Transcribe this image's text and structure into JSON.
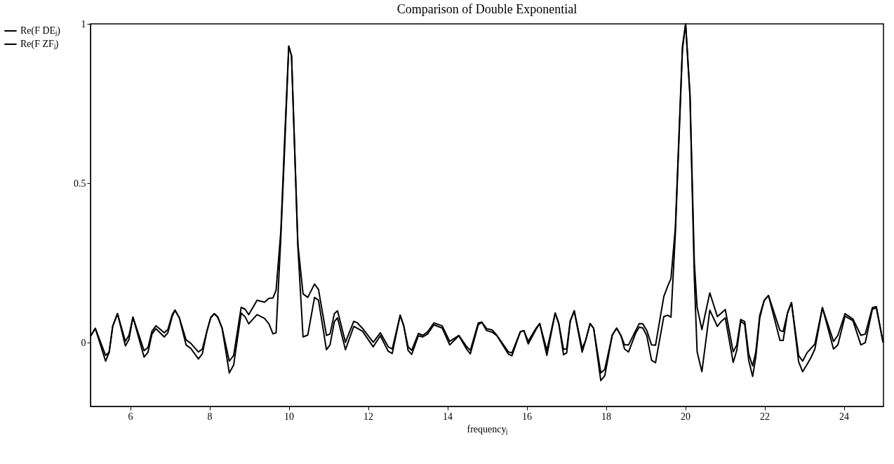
{
  "chart_data": {
    "type": "line",
    "title": "Comparison of Double Exponential",
    "xlabel": "frequencyⱼ",
    "x": [
      5,
      5.12,
      5.38,
      5.47,
      5.56,
      5.68,
      5.88,
      5.97,
      6.07,
      6.35,
      6.45,
      6.55,
      6.65,
      6.86,
      6.95,
      7.06,
      7.13,
      7.24,
      7.41,
      7.53,
      7.72,
      7.82,
      7.94,
      8.03,
      8.12,
      8.21,
      8.32,
      8.5,
      8.61,
      8.8,
      8.9,
      8.99,
      9.2,
      9.39,
      9.5,
      9.6,
      9.68,
      9.8,
      9.9,
      10,
      10.07,
      10.23,
      10.36,
      10.48,
      10.65,
      10.75,
      10.95,
      11.04,
      11.15,
      11.23,
      11.43,
      11.64,
      11.72,
      11.86,
      12.13,
      12.31,
      12.51,
      12.61,
      12.81,
      12.9,
      13.01,
      13.1,
      13.27,
      13.38,
      13.5,
      13.66,
      13.87,
      14.06,
      14.29,
      14.49,
      14.58,
      14.78,
      14.87,
      14.99,
      15.13,
      15.25,
      15.54,
      15.63,
      15.84,
      15.93,
      16.04,
      16.24,
      16.33,
      16.51,
      16.72,
      16.81,
      16.93,
      17.01,
      17.1,
      17.2,
      17.4,
      17.49,
      17.6,
      17.69,
      17.87,
      17.97,
      18.16,
      18.27,
      18.38,
      18.47,
      18.57,
      18.75,
      18.84,
      18.93,
      19.03,
      19.15,
      19.25,
      19.46,
      19.56,
      19.64,
      19.75,
      19.93,
      20.01,
      20.12,
      20.23,
      20.3,
      20.42,
      20.62,
      20.81,
      20.91,
      21.01,
      21.21,
      21.3,
      21.4,
      21.5,
      21.6,
      21.7,
      21.78,
      21.88,
      21.99,
      22.1,
      22.39,
      22.47,
      22.58,
      22.68,
      22.86,
      22.96,
      23.07,
      23.17,
      23.27,
      23.46,
      23.74,
      23.85,
      24.03,
      24.23,
      24.43,
      24.54,
      24.72,
      24.82,
      24.99
    ],
    "series": [
      {
        "name": "Re(F DEⱼ)",
        "color": "#000000",
        "values": [
          0.02,
          0.045,
          -0.04,
          -0.03,
          0.052,
          0.091,
          0.004,
          0.023,
          0.08,
          -0.025,
          -0.015,
          0.036,
          0.053,
          0.031,
          0.041,
          0.088,
          0.102,
          0.078,
          0.009,
          -0.002,
          -0.029,
          -0.02,
          0.038,
          0.078,
          0.091,
          0.08,
          0.045,
          -0.058,
          -0.04,
          0.111,
          0.105,
          0.088,
          0.133,
          0.127,
          0.139,
          0.14,
          0.164,
          0.35,
          0.65,
          0.93,
          0.9,
          0.31,
          0.153,
          0.142,
          0.184,
          0.167,
          0.023,
          0.027,
          0.091,
          0.1,
          0.001,
          0.067,
          0.063,
          0.045,
          0.001,
          0.031,
          -0.013,
          -0.02,
          0.086,
          0.053,
          -0.013,
          -0.024,
          0.029,
          0.023,
          0.034,
          0.062,
          0.053,
          0.004,
          0.023,
          -0.013,
          -0.024,
          0.062,
          0.064,
          0.044,
          0.04,
          0.023,
          -0.029,
          -0.032,
          0.034,
          0.038,
          0.004,
          0.046,
          0.06,
          -0.024,
          0.093,
          0.06,
          -0.021,
          -0.019,
          0.069,
          0.1,
          -0.018,
          0.008,
          0.06,
          0.045,
          -0.095,
          -0.084,
          0.024,
          0.046,
          0.022,
          -0.007,
          -0.007,
          0.038,
          0.06,
          0.059,
          0.038,
          -0.007,
          -0.008,
          0.145,
          0.178,
          0.201,
          0.36,
          0.93,
          1.0,
          0.78,
          0.25,
          0.111,
          0.041,
          0.156,
          0.082,
          0.093,
          0.104,
          -0.029,
          -0.007,
          0.073,
          0.066,
          -0.035,
          -0.073,
          -0.029,
          0.086,
          0.132,
          0.148,
          0.038,
          0.035,
          0.093,
          0.126,
          -0.04,
          -0.058,
          -0.032,
          -0.018,
          -0.004,
          0.11,
          0.004,
          0.023,
          0.091,
          0.074,
          0.023,
          0.027,
          0.11,
          0.113,
          0.001
        ]
      },
      {
        "name": "Re(F ZFⱼ)",
        "color": "#000000",
        "values": [
          0.02,
          0.045,
          -0.058,
          -0.03,
          0.052,
          0.091,
          -0.01,
          0.01,
          0.08,
          -0.045,
          -0.03,
          0.027,
          0.044,
          0.018,
          0.031,
          0.082,
          0.102,
          0.078,
          -0.007,
          -0.018,
          -0.051,
          -0.035,
          0.038,
          0.078,
          0.091,
          0.08,
          0.045,
          -0.095,
          -0.07,
          0.093,
          0.081,
          0.059,
          0.088,
          0.076,
          0.059,
          0.028,
          0.031,
          0.33,
          0.62,
          0.93,
          0.9,
          0.3,
          0.018,
          0.024,
          0.142,
          0.133,
          -0.022,
          -0.007,
          0.066,
          0.078,
          -0.022,
          0.051,
          0.046,
          0.036,
          -0.013,
          0.022,
          -0.027,
          -0.034,
          0.086,
          0.053,
          -0.024,
          -0.037,
          0.022,
          0.018,
          0.027,
          0.056,
          0.046,
          -0.007,
          0.022,
          -0.021,
          -0.035,
          0.056,
          0.064,
          0.038,
          0.033,
          0.022,
          -0.036,
          -0.041,
          0.034,
          0.038,
          -0.004,
          0.042,
          0.06,
          -0.04,
          0.093,
          0.06,
          -0.038,
          -0.032,
          0.067,
          0.1,
          -0.03,
          0.008,
          0.06,
          0.045,
          -0.119,
          -0.104,
          0.024,
          0.045,
          0.022,
          -0.02,
          -0.029,
          0.03,
          0.049,
          0.046,
          0.022,
          -0.055,
          -0.063,
          0.082,
          0.086,
          0.08,
          0.34,
          0.92,
          1.0,
          0.77,
          0.2,
          -0.029,
          -0.091,
          0.102,
          0.051,
          0.067,
          0.078,
          -0.062,
          -0.024,
          0.067,
          0.058,
          -0.055,
          -0.106,
          -0.045,
          0.078,
          0.132,
          0.148,
          0.007,
          0.007,
          0.093,
          0.126,
          -0.06,
          -0.091,
          -0.069,
          -0.047,
          -0.02,
          0.11,
          -0.02,
          -0.007,
          0.083,
          0.069,
          -0.007,
          0,
          0.105,
          0.109,
          0.001
        ]
      }
    ],
    "xlim": [
      5,
      25
    ],
    "xticks": [
      6,
      8,
      10,
      12,
      14,
      16,
      18,
      20,
      22,
      24
    ],
    "ylim": [
      -0.2,
      1
    ],
    "yticks": [
      0,
      0.5,
      1
    ],
    "legend": "left",
    "grid": false,
    "line_style": "solid"
  }
}
